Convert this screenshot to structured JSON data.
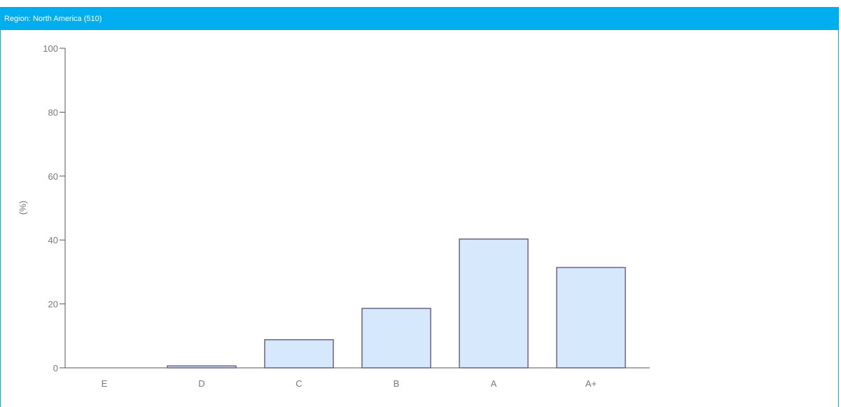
{
  "header": {
    "title": "Region: North America (510)"
  },
  "colors": {
    "header_bg": "#00aeef",
    "bar_fill": "#d6e8fc",
    "bar_stroke": "#6a6480",
    "axis": "#555555"
  },
  "chart_data": {
    "type": "bar",
    "categories": [
      "E",
      "D",
      "C",
      "B",
      "A",
      "A+"
    ],
    "values": [
      0,
      0.6,
      8.8,
      18.6,
      40.3,
      31.4
    ],
    "title": "",
    "xlabel": "",
    "ylabel": "(%)",
    "ylim": [
      0,
      100
    ],
    "yticks": [
      0,
      20,
      40,
      60,
      80,
      100
    ],
    "grid": false
  }
}
